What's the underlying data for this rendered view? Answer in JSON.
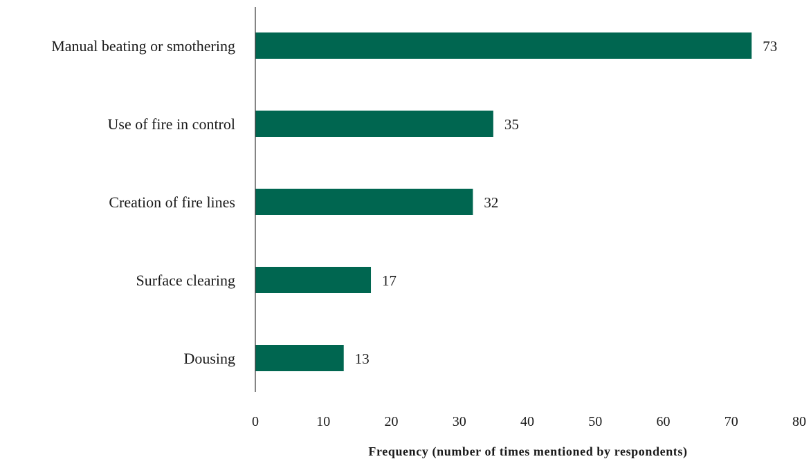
{
  "chart_data": {
    "type": "bar",
    "orientation": "horizontal",
    "categories": [
      "Manual beating or smothering",
      "Use of fire in control",
      "Creation of fire lines",
      "Surface clearing",
      "Dousing"
    ],
    "values": [
      73,
      35,
      32,
      17,
      13
    ],
    "data_labels": [
      "73",
      "35",
      "32",
      "17",
      "13"
    ],
    "xlabel": "Frequency (number of times mentioned by respondents)",
    "ylabel": "",
    "xlim": [
      0,
      80
    ],
    "x_ticks": [
      "0",
      "10",
      "20",
      "30",
      "40",
      "50",
      "60",
      "70",
      "80"
    ],
    "bar_color": "#006650",
    "grid": false,
    "legend": "none"
  }
}
